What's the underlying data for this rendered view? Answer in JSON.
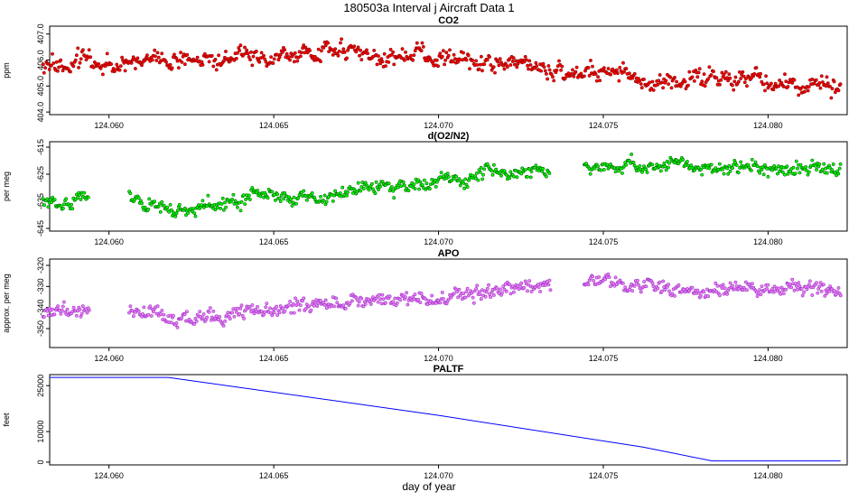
{
  "figure": {
    "title": "180503a   Interval j Aircraft Data 1",
    "xlabel": "day of year"
  },
  "chart_data": [
    {
      "type": "scatter",
      "title": "CO2",
      "ylabel": "ppm",
      "color": "#ff0000",
      "edge_color": "#8b0000",
      "xlim": [
        124.0582,
        124.0824
      ],
      "ylim": [
        403.9,
        407.3
      ],
      "x_ticks": [
        124.06,
        124.065,
        124.07,
        124.075,
        124.08
      ],
      "x_tick_labels": [
        "124.060",
        "124.065",
        "124.070",
        "124.075",
        "124.080"
      ],
      "y_ticks": [
        404.0,
        405.0,
        406.0,
        407.0
      ],
      "y_tick_labels": [
        "404.0",
        "405.0",
        "406.0",
        "407.0"
      ],
      "gaps": [],
      "trend": [
        [
          124.058,
          405.8
        ],
        [
          124.062,
          406.0
        ],
        [
          124.0665,
          406.4
        ],
        [
          124.07,
          406.1
        ],
        [
          124.074,
          405.6
        ],
        [
          124.078,
          405.2
        ],
        [
          124.082,
          405.0
        ]
      ],
      "noise": 0.3
    },
    {
      "type": "scatter",
      "title": "d(O2/N2)",
      "ylabel": "per meg",
      "color": "#00ff00",
      "edge_color": "#006400",
      "xlim": [
        124.0582,
        124.0824
      ],
      "ylim": [
        -646,
        -613
      ],
      "x_ticks": [
        124.06,
        124.065,
        124.07,
        124.075,
        124.08
      ],
      "x_tick_labels": [
        "124.060",
        "124.065",
        "124.070",
        "124.075",
        "124.080"
      ],
      "y_ticks": [
        -645,
        -635,
        -625,
        -615
      ],
      "y_tick_labels": [
        "-645",
        "-635",
        "-625",
        "-615"
      ],
      "gaps": [
        [
          124.0594,
          124.0606
        ],
        [
          124.0734,
          124.0744
        ]
      ],
      "trend": [
        [
          124.058,
          -636
        ],
        [
          124.0592,
          -634
        ],
        [
          124.0607,
          -634
        ],
        [
          124.0622,
          -639
        ],
        [
          124.0645,
          -633
        ],
        [
          124.0665,
          -634
        ],
        [
          124.0682,
          -630
        ],
        [
          124.07,
          -628
        ],
        [
          124.0733,
          -623
        ],
        [
          124.0745,
          -621
        ],
        [
          124.078,
          -622
        ],
        [
          124.082,
          -623
        ]
      ],
      "noise": 2.2
    },
    {
      "type": "scatter",
      "title": "APO",
      "ylabel": "approx. per meg",
      "color": "#ee82ee",
      "edge_color": "#9932cc",
      "xlim": [
        124.0582,
        124.0824
      ],
      "ylim": [
        -359,
        -317
      ],
      "x_ticks": [
        124.06,
        124.065,
        124.07,
        124.075,
        124.08
      ],
      "x_tick_labels": [
        "124.060",
        "124.065",
        "124.070",
        "124.075",
        "124.080"
      ],
      "y_ticks": [
        -350,
        -340,
        -330,
        -320
      ],
      "y_tick_labels": [
        "-350",
        "-340",
        "-330",
        "-320"
      ],
      "gaps": [
        [
          124.0594,
          124.0606
        ],
        [
          124.0734,
          124.0744
        ]
      ],
      "trend": [
        [
          124.058,
          -344
        ],
        [
          124.0592,
          -341
        ],
        [
          124.0607,
          -342
        ],
        [
          124.0622,
          -347
        ],
        [
          124.0645,
          -340
        ],
        [
          124.0665,
          -339
        ],
        [
          124.0682,
          -336
        ],
        [
          124.07,
          -334
        ],
        [
          124.0733,
          -331
        ],
        [
          124.0745,
          -328
        ],
        [
          124.078,
          -331
        ],
        [
          124.082,
          -333
        ]
      ],
      "noise": 3.0
    },
    {
      "type": "line",
      "title": "PALTF",
      "ylabel": "feet",
      "color": "#0000ff",
      "xlim": [
        124.0582,
        124.0824
      ],
      "ylim": [
        -900,
        28600
      ],
      "x_ticks": [
        124.06,
        124.065,
        124.07,
        124.075,
        124.08
      ],
      "x_tick_labels": [
        "124.060",
        "124.065",
        "124.070",
        "124.075",
        "124.080"
      ],
      "y_ticks": [
        0,
        10000,
        25000
      ],
      "y_tick_labels": [
        "0",
        "10000",
        "25000"
      ],
      "x": [
        124.0582,
        124.0618,
        124.07,
        124.0762,
        124.0783,
        124.0822
      ],
      "y": [
        27700,
        27700,
        15300,
        4900,
        400,
        400
      ]
    }
  ]
}
